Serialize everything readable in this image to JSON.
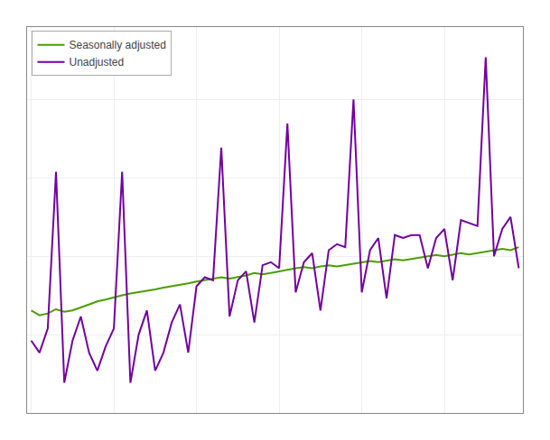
{
  "chart_data": {
    "type": "line",
    "x": [
      0,
      1,
      2,
      3,
      4,
      5,
      6,
      7,
      8,
      9,
      10,
      11,
      12,
      13,
      14,
      15,
      16,
      17,
      18,
      19,
      20,
      21,
      22,
      23,
      24,
      25,
      26,
      27,
      28,
      29,
      30,
      31,
      32,
      33,
      34,
      35,
      36,
      37,
      38,
      39,
      40,
      41,
      42,
      43,
      44,
      45,
      46,
      47,
      48,
      49,
      50,
      51,
      52,
      53,
      54,
      55,
      56,
      57,
      58,
      59
    ],
    "series": [
      {
        "name": "Seasonally adjusted",
        "color": "#4a9e00",
        "values": [
          95.0,
          94.2,
          94.5,
          95.2,
          94.8,
          95.0,
          95.5,
          96.0,
          96.5,
          96.8,
          97.2,
          97.5,
          97.8,
          98.0,
          98.2,
          98.5,
          98.8,
          99.0,
          99.3,
          99.5,
          99.8,
          100.0,
          100.2,
          100.5,
          100.3,
          100.5,
          100.8,
          101.2,
          101.0,
          101.2,
          101.5,
          101.8,
          102.0,
          102.2,
          102.0,
          102.3,
          102.5,
          102.3,
          102.5,
          102.8,
          103.0,
          103.2,
          103.0,
          103.3,
          103.5,
          103.3,
          103.5,
          103.8,
          104.0,
          104.2,
          104.0,
          104.3,
          104.5,
          104.3,
          104.5,
          104.8,
          105.0,
          105.2,
          105.0,
          105.5
        ]
      },
      {
        "name": "Unadjusted",
        "color": "#7200a0",
        "values": [
          90.0,
          88.0,
          92.0,
          118.0,
          83.0,
          90.0,
          94.0,
          88.0,
          85.0,
          89.0,
          92.0,
          118.0,
          83.0,
          91.0,
          95.0,
          85.0,
          88.0,
          93.0,
          96.0,
          88.0,
          99.0,
          100.5,
          100.0,
          122.0,
          94.0,
          100.0,
          101.5,
          93.0,
          102.5,
          103.0,
          102.0,
          126.0,
          98.0,
          103.0,
          104.5,
          95.0,
          105.0,
          106.0,
          105.5,
          130.0,
          98.0,
          105.0,
          107.0,
          97.0,
          107.5,
          107.0,
          107.5,
          107.5,
          102.0,
          107.0,
          108.5,
          100.0,
          110.0,
          109.5,
          109.0,
          137.0,
          104.0,
          108.5,
          110.5,
          102.0
        ]
      }
    ],
    "xlim": [
      -0.5,
      59.5
    ],
    "xticks": [
      0,
      10,
      20,
      30,
      40,
      50
    ],
    "ylim": [
      78,
      142
    ],
    "yticks": [
      78,
      91,
      104,
      117,
      130
    ],
    "grid": true,
    "legend": "upper left",
    "tick_labels": false
  }
}
